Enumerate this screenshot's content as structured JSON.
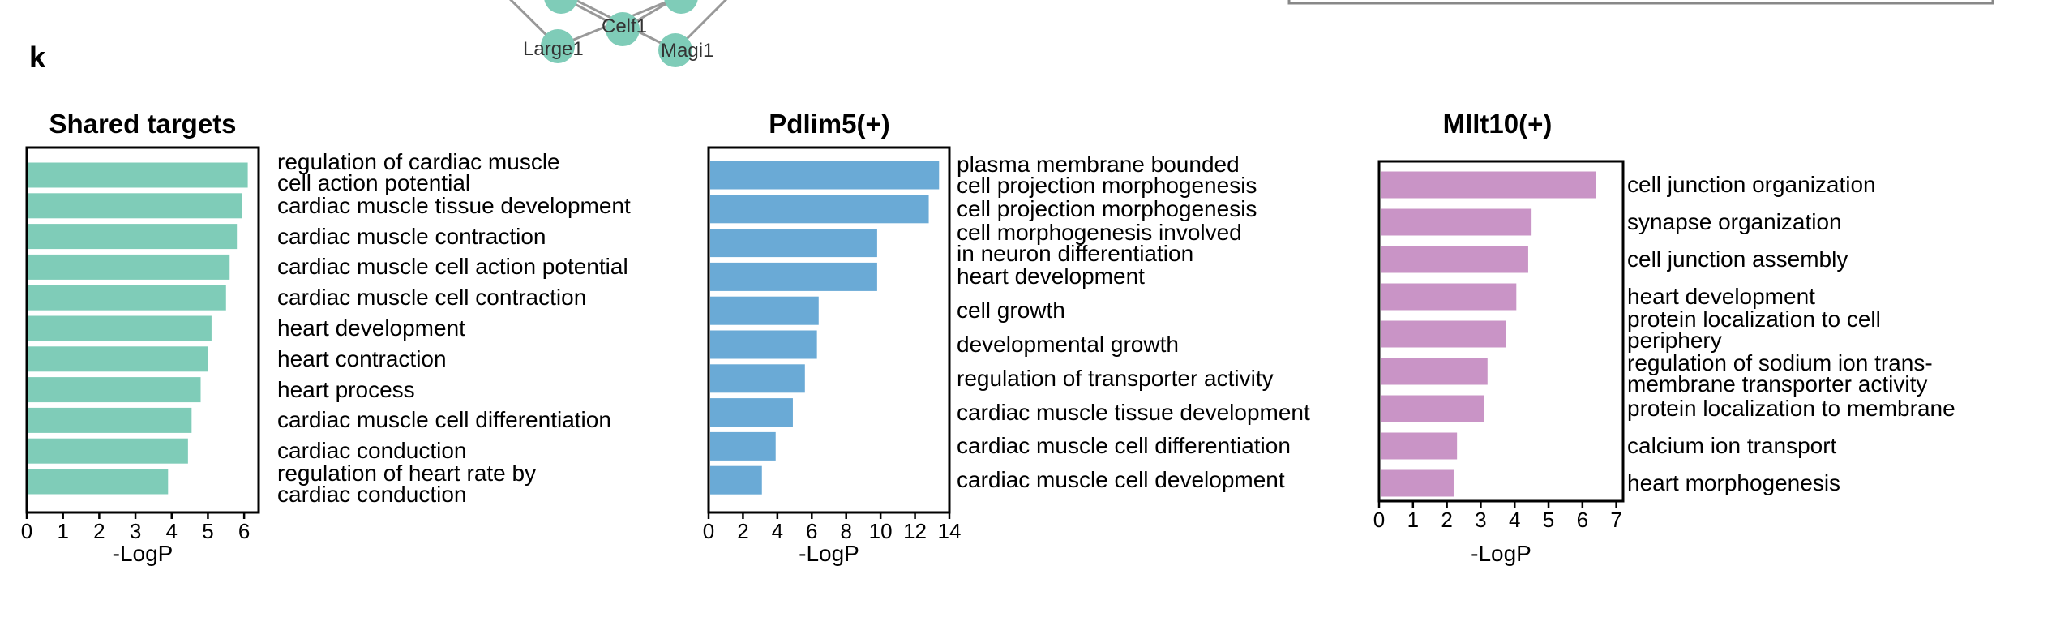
{
  "panel_letter": "k",
  "network": {
    "nodes": [
      "Large1",
      "Celf1",
      "Magi1"
    ]
  },
  "colors": {
    "shared": "#7fccb8",
    "pdlim5": "#6aaad6",
    "mllt10": "#c994c6"
  },
  "chart_data": [
    {
      "type": "bar",
      "orientation": "horizontal",
      "title": "Shared targets",
      "xlabel": "-LogP",
      "xlim": [
        0,
        6.4
      ],
      "xticks": [
        0,
        1,
        2,
        3,
        4,
        5,
        6
      ],
      "categories": [
        "regulation of cardiac muscle\ncell action potential",
        "cardiac muscle tissue development",
        "cardiac muscle contraction",
        "cardiac muscle cell action potential",
        "cardiac muscle cell contraction",
        "heart development",
        "heart contraction",
        "heart process",
        "cardiac muscle cell differentiation",
        "cardiac conduction",
        "regulation of heart rate by\ncardiac conduction"
      ],
      "values": [
        6.1,
        5.95,
        5.8,
        5.6,
        5.5,
        5.1,
        5.0,
        4.8,
        4.55,
        4.45,
        3.9
      ]
    },
    {
      "type": "bar",
      "orientation": "horizontal",
      "title": "Pdlim5(+)",
      "xlabel": "-LogP",
      "xlim": [
        0,
        14
      ],
      "xticks": [
        0,
        2,
        4,
        6,
        8,
        10,
        12,
        14
      ],
      "categories": [
        "plasma membrane bounded\ncell projection morphogenesis",
        "cell projection morphogenesis",
        "cell morphogenesis involved\nin neuron differentiation",
        "heart development",
        "cell growth",
        "developmental growth",
        "regulation of transporter activity",
        "cardiac muscle tissue development",
        "cardiac muscle cell differentiation",
        "cardiac muscle cell development"
      ],
      "values": [
        13.4,
        12.8,
        9.8,
        9.8,
        6.4,
        6.3,
        5.6,
        4.9,
        3.9,
        3.1
      ]
    },
    {
      "type": "bar",
      "orientation": "horizontal",
      "title": "Mllt10(+)",
      "xlabel": "-LogP",
      "xlim": [
        0,
        7.2
      ],
      "xticks": [
        0,
        1,
        2,
        3,
        4,
        5,
        6,
        7
      ],
      "categories": [
        "cell junction organization",
        "synapse organization",
        "cell junction assembly",
        "heart development",
        "protein localization to cell\nperiphery",
        "regulation of sodium ion trans-\nmembrane transporter activity",
        "protein localization to membrane",
        "calcium ion transport",
        "heart morphogenesis"
      ],
      "values": [
        6.4,
        4.5,
        4.4,
        4.05,
        3.75,
        3.2,
        3.1,
        2.3,
        2.2
      ]
    }
  ]
}
